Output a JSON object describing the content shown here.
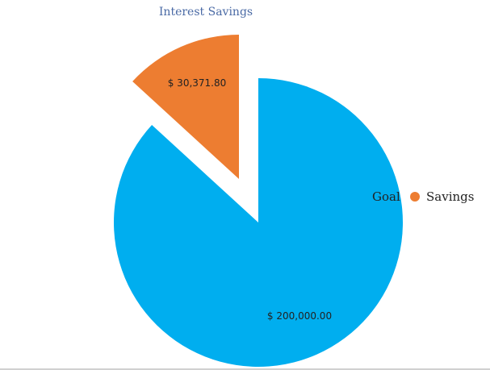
{
  "chart_data": {
    "type": "pie",
    "title": "Interest Savings",
    "categories": [
      "Goal",
      "Savings"
    ],
    "values": [
      200000.0,
      30371.8
    ],
    "data_labels": [
      "$ 200,000.00",
      "$ 30,371.80"
    ],
    "colors": [
      "#00aeef",
      "#ed7d31"
    ],
    "exploded": [
      "Savings"
    ],
    "legend": {
      "placement": "right",
      "entries": [
        {
          "label": "Goal",
          "color": "#00aeef"
        },
        {
          "label": "Savings",
          "color": "#ed7d31"
        }
      ]
    }
  }
}
